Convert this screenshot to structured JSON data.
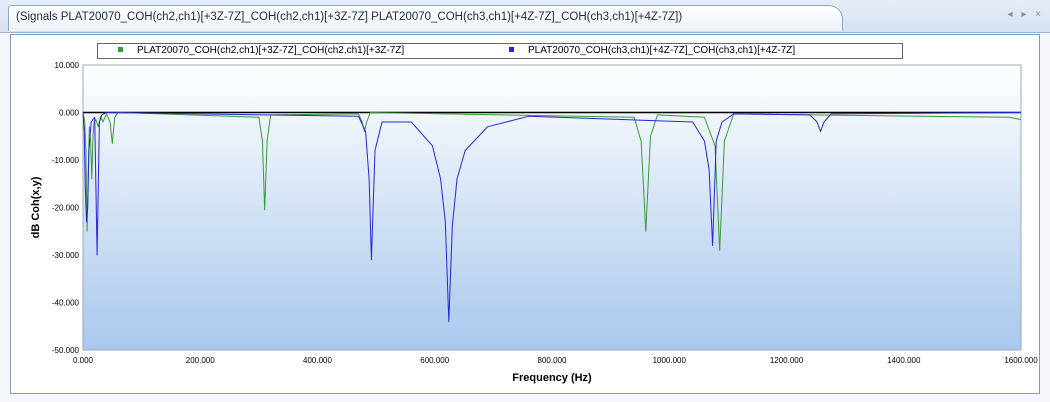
{
  "tab": {
    "title": "(Signals  PLAT20070_COH(ch2,ch1)[+3Z-7Z]_COH(ch2,ch1)[+3Z-7Z]  PLAT20070_COH(ch3,ch1)[+4Z-7Z]_COH(ch3,ch1)[+4Z-7Z])",
    "controls": [
      "◂",
      "▸",
      "×"
    ]
  },
  "colors": {
    "series_green": "#3a9a3a",
    "series_blue": "#2626d8",
    "plot_bg_top": "#ffffff",
    "plot_bg_bottom": "#a9c8ec"
  },
  "chart_data": {
    "type": "line",
    "xlabel": "Frequency (Hz)",
    "ylabel": "dB Coh(x,y)",
    "xlim": [
      0,
      1600
    ],
    "ylim": [
      -50,
      10
    ],
    "x_ticks": [
      "0.000",
      "200.000",
      "400.000",
      "600.000",
      "800.000",
      "1000.000",
      "1200.000",
      "1400.000",
      "1600.000"
    ],
    "y_ticks": [
      "10.000",
      "0.000",
      "-10.000",
      "-20.000",
      "-30.000",
      "-40.000",
      "-50.000"
    ],
    "legend_position": "top",
    "series": [
      {
        "name": "PLAT20070_COH(ch2,ch1)[+3Z-7Z]_COH(ch2,ch1)[+3Z-7Z]",
        "color": "#3a9a3a",
        "x": [
          0,
          3,
          5,
          7,
          9,
          11,
          13,
          15,
          17,
          19,
          22,
          26,
          30,
          34,
          40,
          46,
          50,
          54,
          60,
          300,
          306,
          310,
          314,
          320,
          470,
          476,
          480,
          484,
          490,
          940,
          952,
          960,
          968,
          980,
          1060,
          1078,
          1086,
          1094,
          1110,
          1580,
          1600
        ],
        "y": [
          0,
          -2,
          -8,
          -25,
          -12,
          -3,
          -6,
          -14,
          -5,
          -2,
          -1.5,
          -3,
          -0.8,
          -2,
          -0.3,
          -2,
          -6.5,
          -1,
          0,
          -1,
          -6,
          -20.5,
          -6,
          -0.5,
          -0.3,
          -2,
          -4,
          -2,
          0,
          -1,
          -6,
          -25,
          -5,
          -0.5,
          -1,
          -7,
          -29,
          -6,
          -0.3,
          -1,
          -1.5
        ]
      },
      {
        "name": "PLAT20070_COH(ch3,ch1)[+4Z-7Z]_COH(ch3,ch1)[+4Z-7Z]",
        "color": "#2626d8",
        "x": [
          0,
          2,
          4,
          6,
          8,
          10,
          14,
          20,
          24,
          28,
          32,
          40,
          470,
          482,
          488,
          492,
          498,
          510,
          560,
          596,
          610,
          618,
          624,
          630,
          638,
          652,
          690,
          760,
          1040,
          1060,
          1068,
          1074,
          1080,
          1090,
          1110,
          1240,
          1252,
          1258,
          1264,
          1276,
          1600
        ],
        "y": [
          0,
          -4,
          -16,
          -23,
          -20,
          -8,
          -2,
          -1,
          -30,
          -2,
          -0.5,
          0,
          -0.8,
          -4,
          -14,
          -31,
          -8,
          -2,
          -2,
          -7,
          -14,
          -23,
          -44,
          -24,
          -14,
          -8,
          -3,
          -0.8,
          -2,
          -6,
          -12,
          -28,
          -6,
          -2,
          -0.3,
          -0.5,
          -2,
          -4,
          -2,
          -0.3,
          0
        ]
      }
    ]
  }
}
